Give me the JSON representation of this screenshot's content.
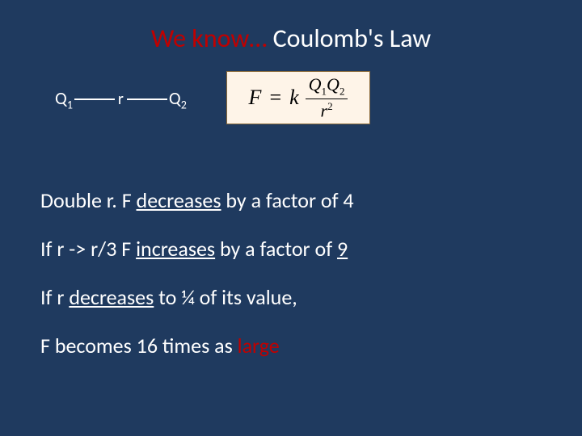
{
  "colors": {
    "background": "#1f3a5f",
    "text": "#ffffff",
    "accent_red": "#c00000",
    "formula_bg": "#fef4e8",
    "formula_border": "#8a6a3a",
    "formula_text": "#000000"
  },
  "title": {
    "prefix": "We know… ",
    "main": "Coulomb's Law"
  },
  "diagram": {
    "left_charge": "Q",
    "left_sub": "1",
    "r_label": "r",
    "right_charge": "Q",
    "right_sub": "2"
  },
  "formula": {
    "lhs": "F",
    "eq": "=",
    "k": "k",
    "num_q1": "Q",
    "num_s1": "1",
    "num_q2": "Q",
    "num_s2": "2",
    "den_r": "r",
    "den_p": "2"
  },
  "lines": {
    "l1a": "Double  r.  F ",
    "l1b": "decreases",
    "l1c": " by a factor of 4",
    "l2a": "If r -> r/3  F ",
    "l2b": "increases",
    "l2c": " by a factor of ",
    "l2d": "9",
    "l3a": "If r ",
    "l3b": "decreases",
    "l3c": " to ¼ of its value,",
    "l4a": "F becomes 16 times as ",
    "l4b": "large"
  }
}
